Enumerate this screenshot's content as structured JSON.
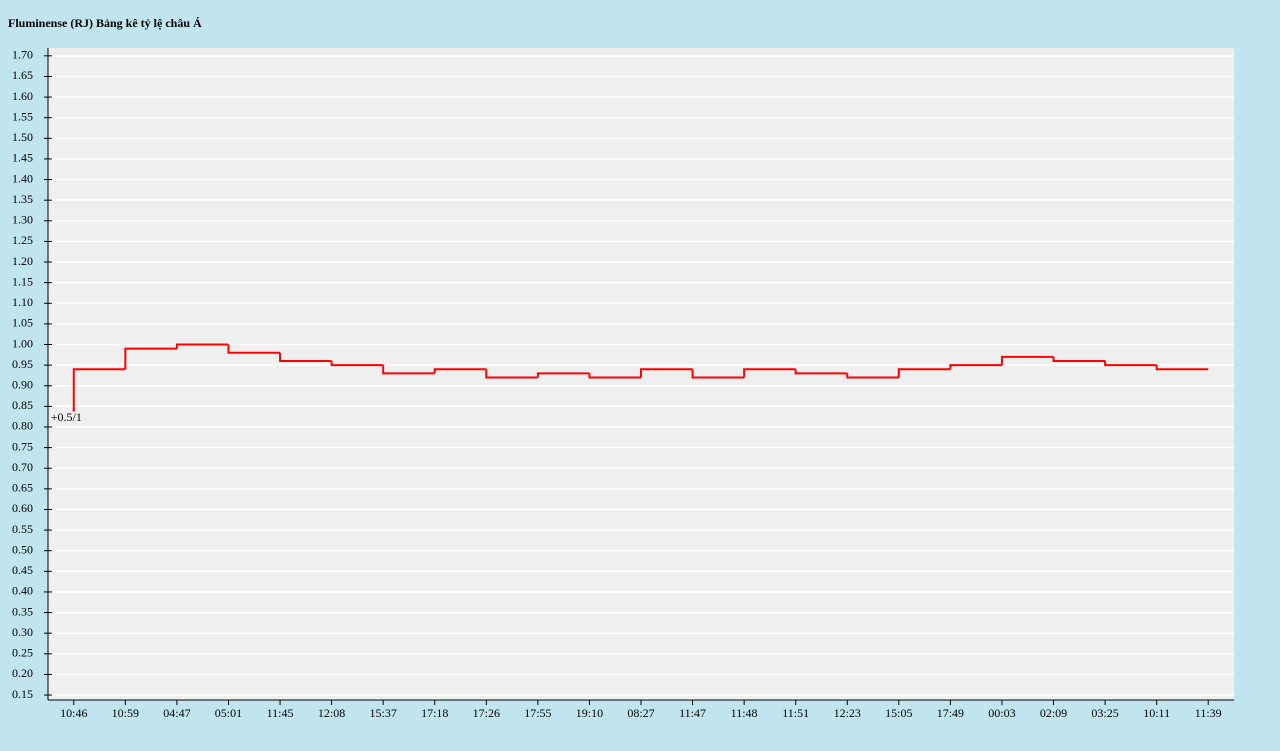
{
  "chart_data": {
    "type": "step",
    "title": "Fluminense (RJ) Bảng kê tỷ lệ châu Á",
    "annotation": "+0.5/1",
    "color": "#ff0000",
    "categories": [
      "10:46",
      "10:59",
      "04:47",
      "05:01",
      "11:45",
      "12:08",
      "15:37",
      "17:18",
      "17:26",
      "17:55",
      "19:10",
      "08:27",
      "11:47",
      "11:48",
      "11:51",
      "12:23",
      "15:05",
      "17:49",
      "00:03",
      "02:09",
      "03:25",
      "10:11",
      "11:39"
    ],
    "values": [
      0.84,
      0.94,
      0.99,
      1.0,
      0.98,
      0.96,
      0.95,
      0.93,
      0.94,
      0.92,
      0.93,
      0.92,
      0.94,
      0.92,
      0.94,
      0.93,
      0.92,
      0.94,
      0.95,
      0.97,
      0.96,
      0.95,
      0.94
    ],
    "ylim": [
      0.138,
      1.719
    ],
    "yticks": [
      {
        "value": 0.15,
        "label": "0.15"
      },
      {
        "value": 0.2,
        "label": "0.20"
      },
      {
        "value": 0.25,
        "label": "0.25"
      },
      {
        "value": 0.3,
        "label": "0.30"
      },
      {
        "value": 0.35,
        "label": "0.35"
      },
      {
        "value": 0.4,
        "label": "0.40"
      },
      {
        "value": 0.45,
        "label": "0.45"
      },
      {
        "value": 0.5,
        "label": "0.50"
      },
      {
        "value": 0.55,
        "label": "0.55"
      },
      {
        "value": 0.6,
        "label": "0.60"
      },
      {
        "value": 0.65,
        "label": "0.65"
      },
      {
        "value": 0.7,
        "label": "0.70"
      },
      {
        "value": 0.75,
        "label": "0.75"
      },
      {
        "value": 0.8,
        "label": "0.80"
      },
      {
        "value": 0.85,
        "label": "0.85"
      },
      {
        "value": 0.9,
        "label": "0.90"
      },
      {
        "value": 0.95,
        "label": "0.95"
      },
      {
        "value": 1.0,
        "label": "1.00"
      },
      {
        "value": 1.05,
        "label": "1.05"
      },
      {
        "value": 1.1,
        "label": "1.10"
      },
      {
        "value": 1.15,
        "label": "1.15"
      },
      {
        "value": 1.2,
        "label": "1.20"
      },
      {
        "value": 1.25,
        "label": "1.25"
      },
      {
        "value": 1.3,
        "label": "1.30"
      },
      {
        "value": 1.35,
        "label": "1.35"
      },
      {
        "value": 1.4,
        "label": "1.40"
      },
      {
        "value": 1.45,
        "label": "1.45"
      },
      {
        "value": 1.5,
        "label": "1.50"
      },
      {
        "value": 1.55,
        "label": "1.55"
      },
      {
        "value": 1.6,
        "label": "1.60"
      },
      {
        "value": 1.65,
        "label": "1.65"
      },
      {
        "value": 1.7,
        "label": "1.70"
      }
    ],
    "grid": true
  }
}
